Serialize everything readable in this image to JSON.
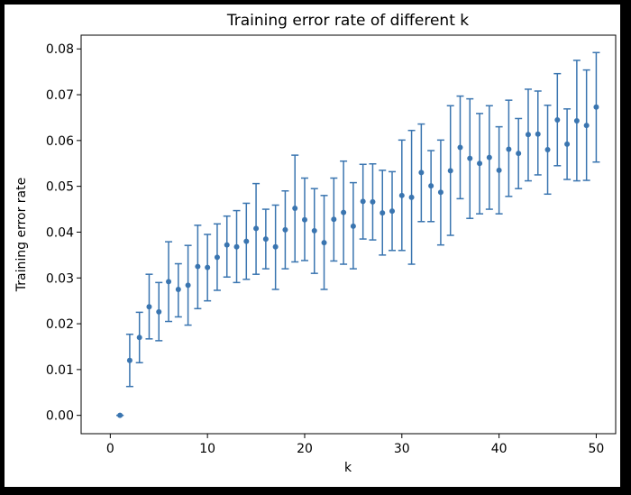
{
  "chart_data": {
    "type": "scatter",
    "title": "Training error rate of different k",
    "xlabel": "k",
    "ylabel": "Training error rate",
    "xlim": [
      -3,
      52
    ],
    "ylim": [
      -0.004,
      0.083
    ],
    "xticks": [
      0,
      10,
      20,
      30,
      40,
      50
    ],
    "yticks": [
      0.0,
      0.01,
      0.02,
      0.03,
      0.04,
      0.05,
      0.06,
      0.07,
      0.08
    ],
    "ytick_labels": [
      "0.00",
      "0.01",
      "0.02",
      "0.03",
      "0.04",
      "0.05",
      "0.06",
      "0.07",
      "0.08"
    ],
    "grid": false,
    "series": [
      {
        "name": "Training error rate",
        "color": "#3a75b0",
        "x": [
          1,
          2,
          3,
          4,
          5,
          6,
          7,
          8,
          9,
          10,
          11,
          12,
          13,
          14,
          15,
          16,
          17,
          18,
          19,
          20,
          21,
          22,
          23,
          24,
          25,
          26,
          27,
          28,
          29,
          30,
          31,
          32,
          33,
          34,
          35,
          36,
          37,
          38,
          39,
          40,
          41,
          42,
          43,
          44,
          45,
          46,
          47,
          48,
          49,
          50
        ],
        "y": [
          0.0,
          0.012,
          0.017,
          0.0237,
          0.0226,
          0.0292,
          0.0275,
          0.0284,
          0.0325,
          0.0323,
          0.0345,
          0.0372,
          0.0368,
          0.038,
          0.0408,
          0.0385,
          0.0368,
          0.0405,
          0.0452,
          0.0427,
          0.0403,
          0.0377,
          0.0428,
          0.0443,
          0.0413,
          0.0467,
          0.0466,
          0.0442,
          0.0446,
          0.048,
          0.0476,
          0.053,
          0.0501,
          0.0487,
          0.0534,
          0.0585,
          0.0561,
          0.055,
          0.0563,
          0.0535,
          0.0581,
          0.0572,
          0.0613,
          0.0614,
          0.058,
          0.0645,
          0.0592,
          0.0643,
          0.0633,
          0.0673
        ],
        "err_low": [
          0.0,
          0.0063,
          0.0115,
          0.0167,
          0.0163,
          0.0205,
          0.0215,
          0.0197,
          0.0233,
          0.025,
          0.0273,
          0.0302,
          0.029,
          0.0297,
          0.0308,
          0.032,
          0.0275,
          0.032,
          0.0335,
          0.0338,
          0.031,
          0.0275,
          0.0337,
          0.033,
          0.032,
          0.0385,
          0.0383,
          0.035,
          0.036,
          0.036,
          0.033,
          0.0423,
          0.0423,
          0.0372,
          0.0393,
          0.0473,
          0.043,
          0.044,
          0.045,
          0.044,
          0.0478,
          0.0495,
          0.0512,
          0.0525,
          0.0483,
          0.0545,
          0.0515,
          0.0512,
          0.0513,
          0.0553
        ],
        "err_high": [
          0.0,
          0.0177,
          0.0225,
          0.0308,
          0.029,
          0.0379,
          0.0331,
          0.0371,
          0.0415,
          0.0395,
          0.0418,
          0.0435,
          0.0447,
          0.0463,
          0.0506,
          0.045,
          0.0459,
          0.049,
          0.0568,
          0.0518,
          0.0495,
          0.048,
          0.0518,
          0.0555,
          0.0508,
          0.0548,
          0.0549,
          0.0535,
          0.0532,
          0.0601,
          0.0622,
          0.0636,
          0.0578,
          0.0601,
          0.0676,
          0.0697,
          0.0691,
          0.0659,
          0.0676,
          0.063,
          0.0688,
          0.0648,
          0.0712,
          0.0708,
          0.0677,
          0.0746,
          0.0669,
          0.0775,
          0.0754,
          0.0792
        ]
      }
    ]
  }
}
